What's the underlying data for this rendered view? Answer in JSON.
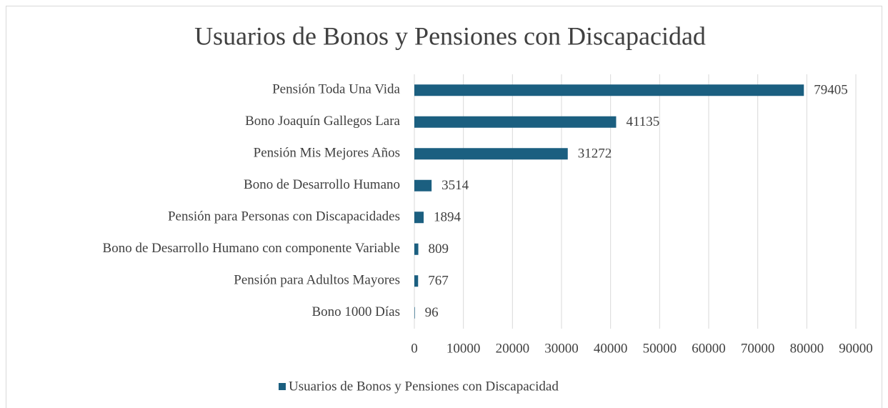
{
  "chart_data": {
    "type": "barh",
    "title": "Usuarios de Bonos y Pensiones con Discapacidad",
    "categories": [
      "Pensión Toda Una Vida",
      "Bono Joaquín Gallegos Lara",
      "Pensión Mis Mejores Años",
      "Bono de Desarrollo Humano",
      "Pensión para Personas con Discapacidades",
      "Bono de Desarrollo Humano con componente Variable",
      "Pensión para Adultos Mayores",
      "Bono 1000 Días"
    ],
    "series": [
      {
        "name": "Usuarios de Bonos y Pensiones con Discapacidad",
        "color": "#1b5f80",
        "values": [
          79405,
          41135,
          31272,
          3514,
          1894,
          809,
          767,
          96
        ]
      }
    ],
    "xlim": [
      0,
      90000
    ],
    "xticks": [
      0,
      10000,
      20000,
      30000,
      40000,
      50000,
      60000,
      70000,
      80000,
      90000
    ],
    "grid": true,
    "legend": "bottom"
  }
}
